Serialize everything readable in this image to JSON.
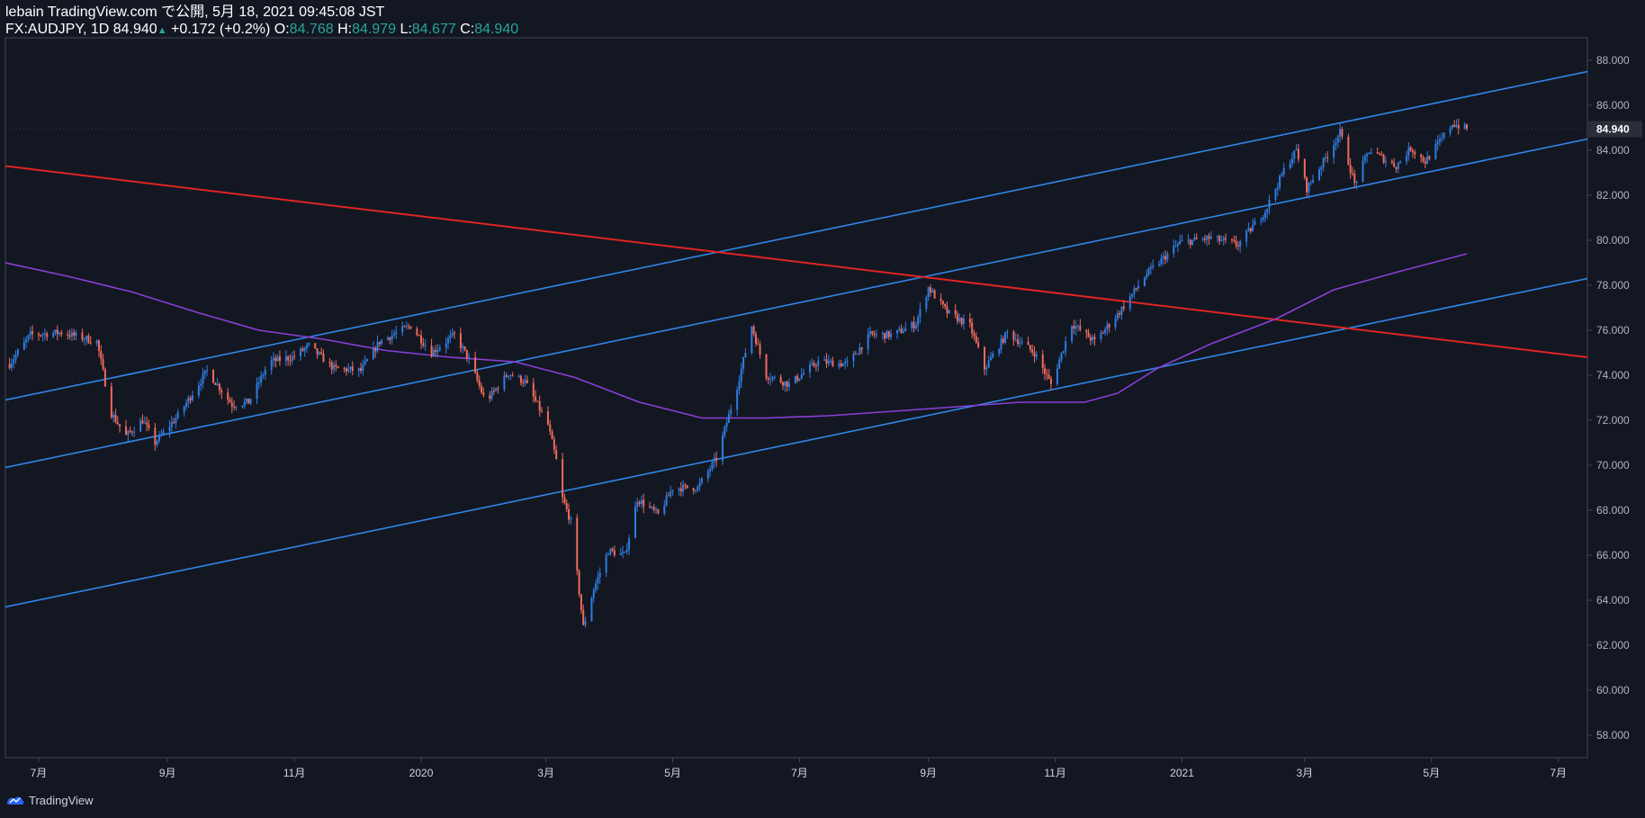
{
  "header": {
    "line1": "lebain TradingView.com で公開, 5月 18, 2021 09:45:08 JST",
    "symbol": "FX:AUDJPY, 1D",
    "last": "84.940",
    "arrow": "▲",
    "change": "+0.172 (+0.2%)",
    "o_label": "O:",
    "o_value": "84.768",
    "h_label": "H:",
    "h_value": "84.979",
    "l_label": "L:",
    "l_value": "84.677",
    "c_label": "C:",
    "c_value": "84.940"
  },
  "footer": {
    "brand": "TradingView"
  },
  "colors": {
    "background": "#131722",
    "up": "#2e7de0",
    "down": "#ef6b5b",
    "channel": "#2f86e8",
    "trend": "#e02424",
    "ma": "#8a3fd6",
    "axis_text": "#b2b5be",
    "price_badge_bg": "#2a2e39"
  },
  "chart_data": {
    "type": "candlestick",
    "title": "FX:AUDJPY, 1D",
    "x_start": "2019-06-15",
    "x_end": "2021-07-15",
    "x_ticks": [
      {
        "label": "7月",
        "date": "2019-07-01"
      },
      {
        "label": "9月",
        "date": "2019-09-01"
      },
      {
        "label": "11月",
        "date": "2019-11-01"
      },
      {
        "label": "2020",
        "date": "2020-01-01"
      },
      {
        "label": "3月",
        "date": "2020-03-01"
      },
      {
        "label": "5月",
        "date": "2020-05-01"
      },
      {
        "label": "7月",
        "date": "2020-07-01"
      },
      {
        "label": "9月",
        "date": "2020-09-01"
      },
      {
        "label": "11月",
        "date": "2020-11-01"
      },
      {
        "label": "2021",
        "date": "2021-01-01"
      },
      {
        "label": "3月",
        "date": "2021-03-01"
      },
      {
        "label": "5月",
        "date": "2021-05-01"
      },
      {
        "label": "7月",
        "date": "2021-07-01"
      }
    ],
    "ylim": [
      57.0,
      89.0
    ],
    "y_ticks": [
      "58.000",
      "60.000",
      "62.000",
      "64.000",
      "66.000",
      "68.000",
      "70.000",
      "72.000",
      "74.000",
      "76.000",
      "78.000",
      "80.000",
      "82.000",
      "84.000",
      "86.000",
      "88.000"
    ],
    "last_price": "84.940",
    "price_path": [
      {
        "d": "2019-06-17",
        "v": 74.5
      },
      {
        "d": "2019-06-27",
        "v": 75.8
      },
      {
        "d": "2019-07-12",
        "v": 75.9
      },
      {
        "d": "2019-07-29",
        "v": 75.5
      },
      {
        "d": "2019-08-05",
        "v": 72.3
      },
      {
        "d": "2019-08-12",
        "v": 71.3
      },
      {
        "d": "2019-08-20",
        "v": 72.0
      },
      {
        "d": "2019-08-26",
        "v": 71.0
      },
      {
        "d": "2019-09-06",
        "v": 72.2
      },
      {
        "d": "2019-09-20",
        "v": 74.2
      },
      {
        "d": "2019-10-02",
        "v": 72.7
      },
      {
        "d": "2019-10-10",
        "v": 72.8
      },
      {
        "d": "2019-10-20",
        "v": 74.6
      },
      {
        "d": "2019-10-31",
        "v": 74.8
      },
      {
        "d": "2019-11-08",
        "v": 75.3
      },
      {
        "d": "2019-11-20",
        "v": 74.3
      },
      {
        "d": "2019-12-03",
        "v": 74.2
      },
      {
        "d": "2019-12-12",
        "v": 75.5
      },
      {
        "d": "2019-12-27",
        "v": 76.2
      },
      {
        "d": "2020-01-06",
        "v": 75.0
      },
      {
        "d": "2020-01-17",
        "v": 75.8
      },
      {
        "d": "2020-01-24",
        "v": 74.7
      },
      {
        "d": "2020-02-01",
        "v": 72.8
      },
      {
        "d": "2020-02-12",
        "v": 74.1
      },
      {
        "d": "2020-02-20",
        "v": 73.7
      },
      {
        "d": "2020-03-02",
        "v": 71.8
      },
      {
        "d": "2020-03-06",
        "v": 70.2
      },
      {
        "d": "2020-03-09",
        "v": 68.5
      },
      {
        "d": "2020-03-13",
        "v": 67.5
      },
      {
        "d": "2020-03-19",
        "v": 62.8
      },
      {
        "d": "2020-03-24",
        "v": 64.5
      },
      {
        "d": "2020-03-31",
        "v": 66.2
      },
      {
        "d": "2020-04-08",
        "v": 66.0
      },
      {
        "d": "2020-04-14",
        "v": 68.5
      },
      {
        "d": "2020-04-24",
        "v": 67.8
      },
      {
        "d": "2020-05-01",
        "v": 69.0
      },
      {
        "d": "2020-05-13",
        "v": 69.0
      },
      {
        "d": "2020-05-22",
        "v": 70.3
      },
      {
        "d": "2020-06-01",
        "v": 73.5
      },
      {
        "d": "2020-06-08",
        "v": 76.2
      },
      {
        "d": "2020-06-15",
        "v": 74.0
      },
      {
        "d": "2020-06-26",
        "v": 73.6
      },
      {
        "d": "2020-07-10",
        "v": 74.6
      },
      {
        "d": "2020-07-24",
        "v": 74.5
      },
      {
        "d": "2020-08-04",
        "v": 75.8
      },
      {
        "d": "2020-08-15",
        "v": 75.8
      },
      {
        "d": "2020-08-26",
        "v": 76.3
      },
      {
        "d": "2020-09-01",
        "v": 77.9
      },
      {
        "d": "2020-09-10",
        "v": 76.8
      },
      {
        "d": "2020-09-21",
        "v": 76.2
      },
      {
        "d": "2020-09-28",
        "v": 74.3
      },
      {
        "d": "2020-10-09",
        "v": 75.9
      },
      {
        "d": "2020-10-22",
        "v": 75.0
      },
      {
        "d": "2020-10-30",
        "v": 73.6
      },
      {
        "d": "2020-11-09",
        "v": 76.3
      },
      {
        "d": "2020-11-20",
        "v": 75.5
      },
      {
        "d": "2020-12-01",
        "v": 76.7
      },
      {
        "d": "2020-12-15",
        "v": 78.5
      },
      {
        "d": "2020-12-31",
        "v": 79.9
      },
      {
        "d": "2021-01-15",
        "v": 80.1
      },
      {
        "d": "2021-01-28",
        "v": 79.8
      },
      {
        "d": "2021-02-10",
        "v": 81.3
      },
      {
        "d": "2021-02-20",
        "v": 83.3
      },
      {
        "d": "2021-02-25",
        "v": 84.0
      },
      {
        "d": "2021-03-02",
        "v": 82.3
      },
      {
        "d": "2021-03-10",
        "v": 83.5
      },
      {
        "d": "2021-03-18",
        "v": 84.8
      },
      {
        "d": "2021-03-25",
        "v": 82.5
      },
      {
        "d": "2021-04-01",
        "v": 84.0
      },
      {
        "d": "2021-04-14",
        "v": 83.3
      },
      {
        "d": "2021-04-21",
        "v": 84.1
      },
      {
        "d": "2021-04-28",
        "v": 83.5
      },
      {
        "d": "2021-05-06",
        "v": 84.5
      },
      {
        "d": "2021-05-11",
        "v": 85.2
      },
      {
        "d": "2021-05-18",
        "v": 84.94
      }
    ],
    "moving_average": [
      {
        "d": "2019-06-15",
        "v": 79.0
      },
      {
        "d": "2019-07-15",
        "v": 78.4
      },
      {
        "d": "2019-08-15",
        "v": 77.7
      },
      {
        "d": "2019-09-15",
        "v": 76.8
      },
      {
        "d": "2019-10-15",
        "v": 76.0
      },
      {
        "d": "2019-11-15",
        "v": 75.6
      },
      {
        "d": "2019-12-15",
        "v": 75.1
      },
      {
        "d": "2020-01-15",
        "v": 74.8
      },
      {
        "d": "2020-02-15",
        "v": 74.6
      },
      {
        "d": "2020-03-15",
        "v": 73.9
      },
      {
        "d": "2020-04-15",
        "v": 72.8
      },
      {
        "d": "2020-05-15",
        "v": 72.1
      },
      {
        "d": "2020-06-15",
        "v": 72.1
      },
      {
        "d": "2020-07-15",
        "v": 72.2
      },
      {
        "d": "2020-08-15",
        "v": 72.4
      },
      {
        "d": "2020-09-15",
        "v": 72.6
      },
      {
        "d": "2020-10-15",
        "v": 72.8
      },
      {
        "d": "2020-11-15",
        "v": 72.8
      },
      {
        "d": "2020-12-01",
        "v": 73.2
      },
      {
        "d": "2020-12-20",
        "v": 74.3
      },
      {
        "d": "2021-01-15",
        "v": 75.4
      },
      {
        "d": "2021-02-15",
        "v": 76.5
      },
      {
        "d": "2021-03-15",
        "v": 77.8
      },
      {
        "d": "2021-04-15",
        "v": 78.6
      },
      {
        "d": "2021-05-18",
        "v": 79.4
      }
    ],
    "trend_lines": [
      {
        "name": "channel-upper",
        "from": {
          "d": "2019-06-15",
          "v": 72.9
        },
        "to": {
          "d": "2021-07-15",
          "v": 87.5
        }
      },
      {
        "name": "channel-middle",
        "from": {
          "d": "2019-06-15",
          "v": 69.9
        },
        "to": {
          "d": "2021-07-15",
          "v": 84.5
        }
      },
      {
        "name": "channel-lower",
        "from": {
          "d": "2019-06-15",
          "v": 63.7
        },
        "to": {
          "d": "2021-07-15",
          "v": 78.3
        }
      },
      {
        "name": "resistance-line",
        "from": {
          "d": "2019-06-15",
          "v": 83.3
        },
        "to": {
          "d": "2021-07-15",
          "v": 74.8
        }
      }
    ]
  }
}
